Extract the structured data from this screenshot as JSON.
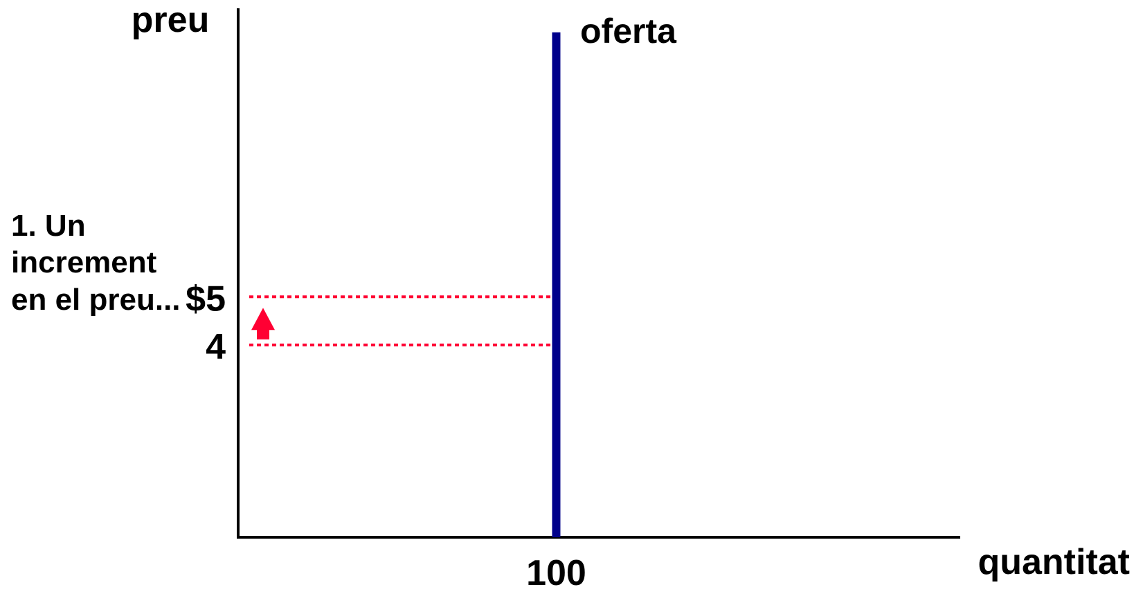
{
  "chart_data": {
    "type": "line",
    "ylabel": "preu",
    "xlabel": "quantitat",
    "x_ticks": [
      "100"
    ],
    "y_ticks": [
      "$5",
      "4"
    ],
    "series": [
      {
        "name": "oferta",
        "x": [
          100,
          100
        ],
        "y": [
          0,
          10.5
        ]
      }
    ],
    "price_levels": [
      4,
      5
    ],
    "quantity": 100,
    "annotation": [
      "1. Un",
      "increment",
      "en el preu..."
    ],
    "xlim": [
      0,
      227
    ],
    "ylim": [
      0,
      11
    ],
    "grid": false,
    "colors": {
      "supply": "#00008B",
      "price_guides": "#FF0033",
      "arrow": "#FF0033",
      "axes": "#000000"
    }
  }
}
